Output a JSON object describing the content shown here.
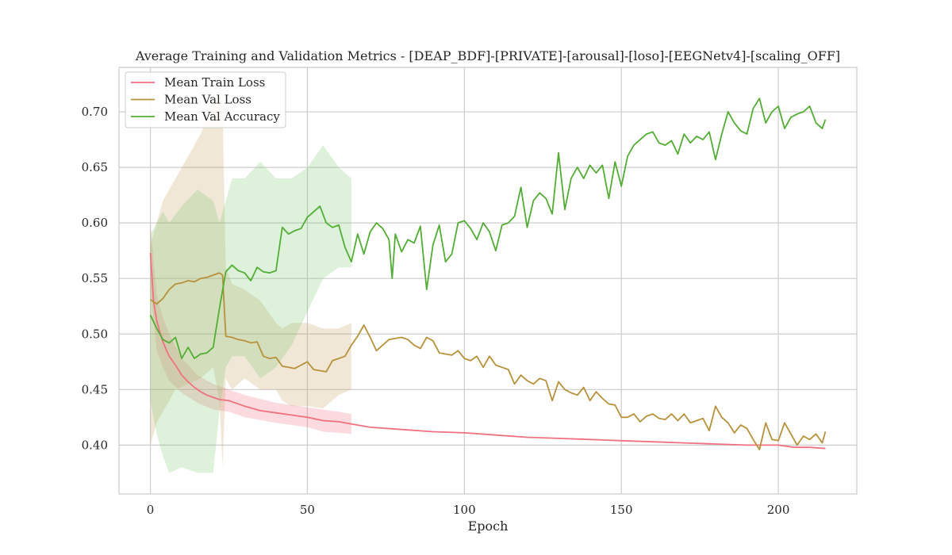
{
  "chart_data": {
    "type": "line",
    "title": "Average Training and Validation Metrics - [DEAP_BDF]-[PRIVATE]-[arousal]-[loso]-[EEGNetv4]-[scaling_OFF]",
    "xlabel": "Epoch",
    "ylabel": "",
    "xlim": [
      -10,
      225
    ],
    "ylim": [
      0.356,
      0.74
    ],
    "grid": true,
    "legend_position": "top-left",
    "x_ticks": [
      0,
      50,
      100,
      150,
      200
    ],
    "x_tick_labels": [
      "0",
      "50",
      "100",
      "150",
      "200"
    ],
    "y_ticks": [
      0.4,
      0.45,
      0.5,
      0.55,
      0.6,
      0.65,
      0.7
    ],
    "y_tick_labels": [
      "0.40",
      "0.45",
      "0.50",
      "0.55",
      "0.60",
      "0.65",
      "0.70"
    ],
    "series": [
      {
        "name": "Mean Train Loss",
        "color": "#f0717f",
        "band_color": "#f0717f",
        "band_opacity": 0.25,
        "x": [
          0,
          1,
          2,
          3,
          4,
          5,
          6,
          8,
          10,
          12,
          14,
          16,
          18,
          20,
          22,
          25,
          30,
          35,
          40,
          45,
          50,
          55,
          60,
          64,
          70,
          80,
          90,
          100,
          110,
          120,
          130,
          140,
          150,
          160,
          170,
          180,
          190,
          200,
          205,
          210,
          215
        ],
        "values": [
          0.573,
          0.53,
          0.512,
          0.502,
          0.493,
          0.486,
          0.48,
          0.472,
          0.463,
          0.457,
          0.452,
          0.448,
          0.445,
          0.443,
          0.441,
          0.44,
          0.435,
          0.431,
          0.429,
          0.427,
          0.425,
          0.422,
          0.421,
          0.419,
          0.416,
          0.414,
          0.412,
          0.411,
          0.409,
          0.407,
          0.406,
          0.405,
          0.404,
          0.403,
          0.402,
          0.401,
          0.4,
          0.4,
          0.398,
          0.398,
          0.397
        ],
        "band_x": [
          0,
          2,
          4,
          6,
          10,
          15,
          20,
          25,
          30,
          40,
          50,
          55,
          60,
          64
        ],
        "band_lower": [
          0.54,
          0.485,
          0.47,
          0.458,
          0.447,
          0.438,
          0.432,
          0.43,
          0.425,
          0.42,
          0.416,
          0.412,
          0.411,
          0.41
        ],
        "band_upper": [
          0.6,
          0.535,
          0.515,
          0.5,
          0.478,
          0.463,
          0.455,
          0.45,
          0.445,
          0.438,
          0.434,
          0.432,
          0.43,
          0.428
        ]
      },
      {
        "name": "Mean Val Loss",
        "color": "#b8913a",
        "band_color": "#c4a060",
        "band_opacity": 0.25,
        "x": [
          0,
          2,
          4,
          6,
          8,
          10,
          12,
          14,
          16,
          18,
          20,
          22,
          23,
          24,
          26,
          28,
          30,
          32,
          34,
          36,
          38,
          40,
          42,
          44,
          46,
          48,
          50,
          52,
          54,
          56,
          58,
          60,
          62,
          64,
          66,
          68,
          70,
          72,
          74,
          76,
          78,
          80,
          82,
          84,
          86,
          88,
          90,
          92,
          94,
          96,
          98,
          100,
          102,
          104,
          106,
          108,
          110,
          112,
          114,
          116,
          118,
          120,
          122,
          124,
          126,
          128,
          130,
          132,
          134,
          136,
          138,
          140,
          142,
          144,
          146,
          148,
          150,
          152,
          154,
          156,
          158,
          160,
          162,
          164,
          166,
          168,
          170,
          172,
          174,
          176,
          178,
          180,
          182,
          184,
          186,
          188,
          190,
          192,
          194,
          196,
          198,
          200,
          202,
          204,
          206,
          208,
          210,
          212,
          214,
          215
        ],
        "values": [
          0.531,
          0.527,
          0.532,
          0.54,
          0.545,
          0.546,
          0.548,
          0.547,
          0.55,
          0.551,
          0.553,
          0.555,
          0.553,
          0.498,
          0.497,
          0.495,
          0.494,
          0.492,
          0.493,
          0.48,
          0.478,
          0.479,
          0.471,
          0.47,
          0.469,
          0.472,
          0.475,
          0.468,
          0.467,
          0.466,
          0.476,
          0.478,
          0.48,
          0.49,
          0.498,
          0.508,
          0.497,
          0.485,
          0.49,
          0.495,
          0.496,
          0.497,
          0.495,
          0.49,
          0.487,
          0.497,
          0.494,
          0.483,
          0.482,
          0.481,
          0.485,
          0.478,
          0.476,
          0.48,
          0.47,
          0.48,
          0.472,
          0.47,
          0.468,
          0.455,
          0.463,
          0.458,
          0.455,
          0.46,
          0.458,
          0.44,
          0.457,
          0.45,
          0.447,
          0.445,
          0.452,
          0.44,
          0.448,
          0.442,
          0.437,
          0.436,
          0.425,
          0.425,
          0.428,
          0.421,
          0.426,
          0.428,
          0.424,
          0.423,
          0.428,
          0.422,
          0.428,
          0.42,
          0.422,
          0.424,
          0.413,
          0.435,
          0.425,
          0.42,
          0.411,
          0.418,
          0.415,
          0.405,
          0.396,
          0.42,
          0.405,
          0.404,
          0.42,
          0.41,
          0.4,
          0.408,
          0.405,
          0.41,
          0.402,
          0.412
        ],
        "band_x": [
          0,
          2,
          4,
          6,
          8,
          12,
          16,
          20,
          22,
          23,
          24,
          26,
          30,
          35,
          40,
          42,
          45,
          50,
          55,
          60,
          64
        ],
        "band_lower": [
          0.4,
          0.42,
          0.43,
          0.44,
          0.45,
          0.455,
          0.46,
          0.47,
          0.44,
          0.38,
          0.46,
          0.45,
          0.46,
          0.45,
          0.45,
          0.44,
          0.435,
          0.435,
          0.433,
          0.445,
          0.45
        ],
        "band_upper": [
          0.58,
          0.6,
          0.62,
          0.63,
          0.64,
          0.66,
          0.68,
          0.71,
          0.72,
          0.7,
          0.56,
          0.545,
          0.54,
          0.53,
          0.51,
          0.505,
          0.51,
          0.51,
          0.505,
          0.505,
          0.51
        ]
      },
      {
        "name": "Mean Val Accuracy",
        "color": "#52ad35",
        "band_color": "#7cc66a",
        "band_opacity": 0.25,
        "x": [
          0,
          2,
          4,
          6,
          8,
          10,
          12,
          14,
          16,
          18,
          20,
          22,
          24,
          26,
          28,
          30,
          32,
          34,
          36,
          38,
          40,
          42,
          44,
          46,
          48,
          50,
          52,
          54,
          56,
          58,
          60,
          62,
          64,
          66,
          68,
          70,
          72,
          74,
          76,
          77,
          78,
          80,
          82,
          84,
          86,
          88,
          90,
          92,
          94,
          96,
          98,
          100,
          102,
          104,
          106,
          108,
          110,
          112,
          114,
          116,
          118,
          120,
          122,
          124,
          126,
          128,
          130,
          132,
          134,
          136,
          138,
          140,
          142,
          144,
          146,
          148,
          150,
          152,
          154,
          156,
          158,
          160,
          162,
          164,
          166,
          168,
          170,
          172,
          174,
          176,
          178,
          180,
          182,
          184,
          186,
          188,
          190,
          192,
          194,
          196,
          198,
          200,
          202,
          204,
          206,
          208,
          210,
          212,
          214,
          215
        ],
        "values": [
          0.517,
          0.505,
          0.495,
          0.492,
          0.497,
          0.478,
          0.488,
          0.478,
          0.482,
          0.483,
          0.488,
          0.523,
          0.556,
          0.562,
          0.557,
          0.555,
          0.548,
          0.56,
          0.556,
          0.555,
          0.557,
          0.596,
          0.59,
          0.593,
          0.595,
          0.605,
          0.61,
          0.615,
          0.6,
          0.596,
          0.598,
          0.578,
          0.565,
          0.59,
          0.572,
          0.592,
          0.6,
          0.595,
          0.585,
          0.55,
          0.59,
          0.574,
          0.585,
          0.582,
          0.597,
          0.54,
          0.58,
          0.598,
          0.565,
          0.572,
          0.6,
          0.602,
          0.595,
          0.585,
          0.6,
          0.592,
          0.575,
          0.598,
          0.6,
          0.606,
          0.632,
          0.596,
          0.62,
          0.627,
          0.622,
          0.608,
          0.663,
          0.612,
          0.64,
          0.65,
          0.64,
          0.652,
          0.645,
          0.652,
          0.622,
          0.655,
          0.633,
          0.66,
          0.67,
          0.675,
          0.68,
          0.682,
          0.672,
          0.67,
          0.674,
          0.662,
          0.68,
          0.672,
          0.678,
          0.675,
          0.682,
          0.657,
          0.68,
          0.7,
          0.69,
          0.683,
          0.68,
          0.703,
          0.712,
          0.69,
          0.7,
          0.705,
          0.685,
          0.695,
          0.698,
          0.7,
          0.705,
          0.69,
          0.685,
          0.693
        ],
        "band_x": [
          0,
          2,
          4,
          6,
          10,
          15,
          20,
          22,
          24,
          26,
          30,
          35,
          40,
          45,
          50,
          55,
          60,
          64
        ],
        "band_lower": [
          0.44,
          0.41,
          0.39,
          0.375,
          0.38,
          0.375,
          0.375,
          0.43,
          0.47,
          0.48,
          0.48,
          0.46,
          0.47,
          0.49,
          0.52,
          0.55,
          0.56,
          0.56
        ],
        "band_upper": [
          0.59,
          0.6,
          0.61,
          0.6,
          0.615,
          0.63,
          0.62,
          0.6,
          0.62,
          0.64,
          0.64,
          0.655,
          0.64,
          0.64,
          0.65,
          0.67,
          0.65,
          0.64
        ]
      }
    ]
  }
}
